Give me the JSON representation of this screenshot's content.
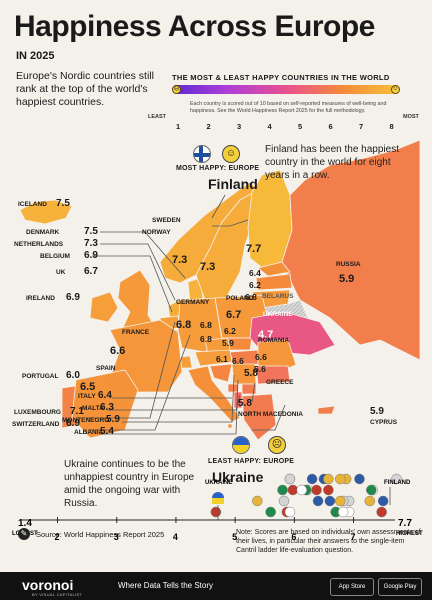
{
  "header": {
    "title": "Happiness Across Europe",
    "subtitle": "IN 2025",
    "intro": "Europe's Nordic countries still rank at the top of the world's happiest countries."
  },
  "scale": {
    "title": "THE MOST & LEAST HAPPY COUNTRIES IN THE WORLD",
    "note": "Each country is scored out of 10 based on self-reported measures of well-being and happiness. See the World Happiness Report 2025 for the full methodology.",
    "least_label": "LEAST",
    "most_label": "MOST",
    "ticks": [
      "1",
      "2",
      "3",
      "4",
      "5",
      "6",
      "7",
      "8"
    ],
    "gradient": [
      "#5b2ad1",
      "#b03fd6",
      "#e8508f",
      "#f58b3a",
      "#f7c23a"
    ]
  },
  "most_happy": {
    "tag": "MOST HAPPY: EUROPE",
    "country": "Finland",
    "note": "Finland has been the happiest country in the world for eight years in a row."
  },
  "least_happy": {
    "tag": "LEAST HAPPY: EUROPE",
    "country": "Ukraine",
    "note": "Ukraine continues to be the unhappiest country in Europe amid the ongoing war with Russia."
  },
  "chart_data": [
    {
      "type": "heatmap",
      "title": "Happiness Across Europe",
      "unit": "score out of 10",
      "countries": [
        {
          "name": "Iceland",
          "value": 7.5,
          "label": "ICELAND"
        },
        {
          "name": "Denmark",
          "value": 7.5,
          "label": "DENMARK"
        },
        {
          "name": "Netherlands",
          "value": 7.3,
          "label": "NETHERLANDS"
        },
        {
          "name": "Belgium",
          "value": 6.9,
          "label": "BELGIUM"
        },
        {
          "name": "UK",
          "value": 6.7,
          "label": "UK"
        },
        {
          "name": "Ireland",
          "value": 6.9,
          "label": "IRELAND"
        },
        {
          "name": "Portugal",
          "value": 6.0,
          "label": "PORTUGAL"
        },
        {
          "name": "Luxembourg",
          "value": 7.1,
          "label": "LUXEMBOURG"
        },
        {
          "name": "Switzerland",
          "value": 6.9,
          "label": "SWITZERLAND"
        },
        {
          "name": "Sweden",
          "value": 7.3,
          "label": "SWEDEN"
        },
        {
          "name": "Norway",
          "value": 7.3,
          "label": "NORWAY"
        },
        {
          "name": "Finland",
          "value": 7.7,
          "label": ""
        },
        {
          "name": "Russia",
          "value": 5.9,
          "label": "RUSSIA"
        },
        {
          "name": "Estonia",
          "value": 6.4,
          "label": ""
        },
        {
          "name": "Latvia",
          "value": 6.2,
          "label": ""
        },
        {
          "name": "Lithuania",
          "value": 6.8,
          "label": ""
        },
        {
          "name": "Belarus",
          "value": null,
          "label": "BELARUS"
        },
        {
          "name": "Poland",
          "value": 6.7,
          "label": "POLAND"
        },
        {
          "name": "Germany",
          "value": 6.8,
          "label": "GERMANY"
        },
        {
          "name": "France",
          "value": 6.6,
          "label": "FRANCE"
        },
        {
          "name": "Spain",
          "value": 6.5,
          "label": "SPAIN"
        },
        {
          "name": "Czechia",
          "value": 6.8,
          "label": ""
        },
        {
          "name": "Austria",
          "value": 6.8,
          "label": ""
        },
        {
          "name": "Slovakia",
          "value": 6.2,
          "label": ""
        },
        {
          "name": "Hungary",
          "value": 5.9,
          "label": ""
        },
        {
          "name": "Ukraine",
          "value": 4.7,
          "label": "UKRAINE"
        },
        {
          "name": "Romania",
          "value": 6.6,
          "label": "ROMANIA"
        },
        {
          "name": "Croatia",
          "value": 6.1,
          "label": ""
        },
        {
          "name": "Serbia",
          "value": 6.6,
          "label": ""
        },
        {
          "name": "Bulgaria",
          "value": 5.6,
          "label": ""
        },
        {
          "name": "Greece",
          "value": 5.8,
          "label": "GREECE"
        },
        {
          "name": "Italy",
          "value": 6.4,
          "label": "ITALY"
        },
        {
          "name": "Malta",
          "value": 6.3,
          "label": "MALTA"
        },
        {
          "name": "Montenegro",
          "value": 5.9,
          "label": "MONTENEGRO"
        },
        {
          "name": "Albania",
          "value": 5.4,
          "label": "ALBANIA"
        },
        {
          "name": "North Macedonia",
          "value": 5.8,
          "label": "NORTH MACEDONIA"
        },
        {
          "name": "Cyprus",
          "value": 5.9,
          "label": "CYPRUS"
        }
      ]
    },
    {
      "type": "scatter",
      "title": "",
      "x_range": [
        1.4,
        7.7
      ],
      "ticks": [
        "2",
        "3",
        "4",
        "5",
        "6",
        "7"
      ],
      "low_label": "1.4",
      "low_caption": "LOWEST",
      "high_label": "7.7",
      "high_caption": "HIGHEST",
      "ukraine_label": "UKRAINE",
      "finland_label": "FINLAND"
    }
  ],
  "source": "Source: World Happiness Report 2025",
  "note": "Note: Scores are based on individuals' own assessments of their lives, in particular their answers to the single-item Cantril ladder life-evaluation question.",
  "footer": {
    "brand": "voronoi",
    "brand_sub": "BY VISUAL CAPITALIST",
    "tagline": "Where Data Tells the Story",
    "app_store": "App Store",
    "google_play": "Google Play"
  }
}
